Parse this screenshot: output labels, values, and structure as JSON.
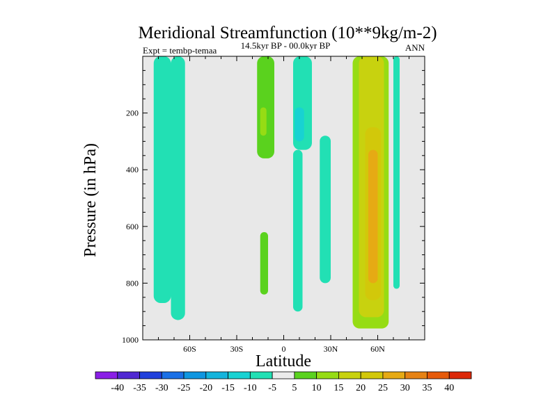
{
  "chart_data": {
    "type": "contour",
    "title": "Meridional Streamfunction (10**9kg/m-2)",
    "subtitle": "14.5kyr BP - 00.0kyr BP",
    "left_label": "Expt = tembp-temaa",
    "right_label": "ANN",
    "xlabel": "Latitude",
    "ylabel": "Pressure (in hPa)",
    "xlim": [
      -90,
      90
    ],
    "ylim": [
      1000,
      0
    ],
    "xticks": [
      -60,
      -30,
      0,
      30,
      60
    ],
    "xtick_labels": [
      "60S",
      "30S",
      "0",
      "30N",
      "60N"
    ],
    "yticks": [
      200,
      400,
      600,
      800,
      1000
    ],
    "ytick_labels": [
      "200",
      "400",
      "600",
      "800",
      "1000"
    ],
    "background_color": "#e8e8e8",
    "colorbar": {
      "levels": [
        -40,
        -35,
        -30,
        -25,
        -20,
        -15,
        -10,
        -5,
        5,
        10,
        15,
        20,
        25,
        30,
        35,
        40
      ],
      "labels": [
        "-40",
        "-35",
        "-30",
        "-25",
        "-20",
        "-15",
        "-10",
        "-5",
        "5",
        "10",
        "15",
        "20",
        "25",
        "30",
        "35",
        "40"
      ],
      "colors": [
        "#8a1ee6",
        "#5028d2",
        "#2040dc",
        "#1a70e6",
        "#0f96e0",
        "#14b4dc",
        "#18d2d2",
        "#22e0b4",
        "#ebebeb",
        "#5ad21e",
        "#96dc14",
        "#c8d20f",
        "#d2c80a",
        "#e6aa14",
        "#e68214",
        "#e65a0a",
        "#dc2808"
      ]
    },
    "regions": [
      {
        "name": "sh-negative-cell-west",
        "value": -5,
        "color": "#22e0b4",
        "lat_min": -83,
        "lat_max": -72,
        "p_top": 0,
        "p_bottom": 870
      },
      {
        "name": "sh-negative-cell-east",
        "value": -5,
        "color": "#22e0b4",
        "lat_min": -72,
        "lat_max": -63,
        "p_top": 0,
        "p_bottom": 930
      },
      {
        "name": "tropical-positive-upper",
        "value": 5,
        "color": "#5ad21e",
        "lat_min": -17,
        "lat_max": -6,
        "p_top": 0,
        "p_bottom": 360
      },
      {
        "name": "tropical-positive-core",
        "value": 10,
        "color": "#96dc14",
        "lat_min": -15,
        "lat_max": -11,
        "p_top": 180,
        "p_bottom": 280
      },
      {
        "name": "tropical-positive-lower",
        "value": 5,
        "color": "#5ad21e",
        "lat_min": -15,
        "lat_max": -10,
        "p_top": 620,
        "p_bottom": 840
      },
      {
        "name": "equatorial-negative-upper",
        "value": -5,
        "color": "#22e0b4",
        "lat_min": 6,
        "lat_max": 18,
        "p_top": 0,
        "p_bottom": 330
      },
      {
        "name": "equatorial-negative-core",
        "value": -10,
        "color": "#18d2d2",
        "lat_min": 7,
        "lat_max": 13,
        "p_top": 180,
        "p_bottom": 300
      },
      {
        "name": "equatorial-negative-column",
        "value": -5,
        "color": "#22e0b4",
        "lat_min": 6,
        "lat_max": 12,
        "p_top": 330,
        "p_bottom": 900
      },
      {
        "name": "nh-negative-column",
        "value": -5,
        "color": "#22e0b4",
        "lat_min": 23,
        "lat_max": 30,
        "p_top": 280,
        "p_bottom": 800
      },
      {
        "name": "nh-positive-cell",
        "value": 10,
        "color": "#96dc14",
        "lat_min": 44,
        "lat_max": 67,
        "p_top": 0,
        "p_bottom": 960
      },
      {
        "name": "nh-positive-core-15",
        "value": 15,
        "color": "#c8d20f",
        "lat_min": 48,
        "lat_max": 64,
        "p_top": 0,
        "p_bottom": 920
      },
      {
        "name": "nh-positive-core-20",
        "value": 20,
        "color": "#d2c80a",
        "lat_min": 52,
        "lat_max": 62,
        "p_top": 250,
        "p_bottom": 860
      },
      {
        "name": "nh-positive-core-25",
        "value": 25,
        "color": "#e6aa14",
        "lat_min": 54,
        "lat_max": 60,
        "p_top": 330,
        "p_bottom": 800
      },
      {
        "name": "nh-negative-upper-east",
        "value": -5,
        "color": "#22e0b4",
        "lat_min": 70,
        "lat_max": 74,
        "p_top": 0,
        "p_bottom": 820
      }
    ]
  }
}
